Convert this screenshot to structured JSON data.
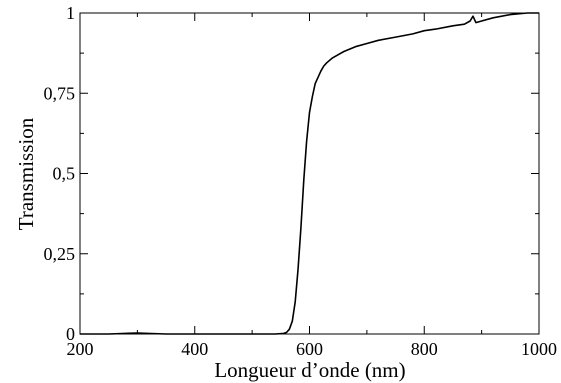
{
  "chart_data": {
    "type": "line",
    "title": "",
    "xlabel": "Longueur d’onde (nm)",
    "ylabel": "Transmission",
    "xlim": [
      200,
      1000
    ],
    "ylim": [
      0,
      1
    ],
    "x_ticks": [
      200,
      400,
      600,
      800,
      1000
    ],
    "x_tick_labels": [
      "200",
      "400",
      "600",
      "800",
      "1000"
    ],
    "y_ticks": [
      0,
      0.25,
      0.5,
      0.75,
      1
    ],
    "y_tick_labels": [
      "0",
      "0,25",
      "0,5",
      "0,75",
      "1"
    ],
    "grid": false,
    "legend": "none",
    "line_color": "#000000",
    "series": [
      {
        "x": [
          200,
          250,
          300,
          350,
          400,
          450,
          500,
          540,
          555,
          560,
          565,
          570,
          575,
          580,
          585,
          590,
          595,
          600,
          605,
          610,
          615,
          620,
          625,
          630,
          640,
          650,
          660,
          680,
          700,
          720,
          750,
          780,
          800,
          820,
          850,
          870,
          880,
          885,
          890,
          900,
          920,
          950,
          980,
          1000
        ],
        "y": [
          0.0,
          0.0,
          0.003,
          0.0,
          0.0,
          0.0,
          0.0,
          0.0,
          0.002,
          0.005,
          0.015,
          0.04,
          0.1,
          0.2,
          0.33,
          0.48,
          0.6,
          0.69,
          0.74,
          0.78,
          0.8,
          0.82,
          0.835,
          0.845,
          0.86,
          0.87,
          0.88,
          0.895,
          0.905,
          0.915,
          0.925,
          0.935,
          0.945,
          0.95,
          0.96,
          0.965,
          0.975,
          0.99,
          0.97,
          0.975,
          0.985,
          0.995,
          1.0,
          1.0
        ]
      }
    ]
  }
}
